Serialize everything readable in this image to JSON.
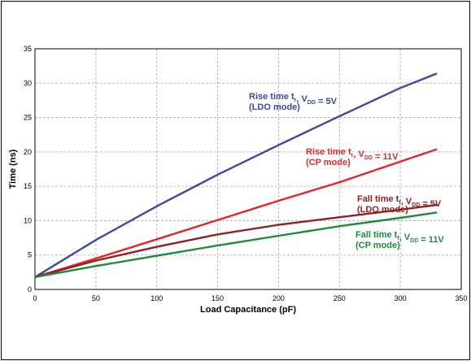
{
  "chart_data": {
    "type": "line",
    "xlabel": "Load Capacitance (pF)",
    "ylabel": "Time (ns)",
    "xlim": [
      0,
      350
    ],
    "ylim": [
      0,
      35
    ],
    "x_ticks": [
      0,
      50,
      100,
      150,
      200,
      250,
      300,
      350
    ],
    "y_ticks": [
      0,
      5,
      10,
      15,
      20,
      25,
      30,
      35
    ],
    "grid": true,
    "legend": "inline annotations",
    "series": [
      {
        "name": "Rise time tr, VDD = 5V (LDO mode)",
        "color": "#3a4a9e",
        "x": [
          0,
          50,
          100,
          150,
          200,
          250,
          300,
          330
        ],
        "y": [
          1.8,
          7.2,
          12.1,
          16.7,
          21.0,
          25.2,
          29.3,
          31.4
        ]
      },
      {
        "name": "Rise time tr, VDD = 11V (CP mode)",
        "color": "#e0252b",
        "x": [
          0,
          50,
          100,
          150,
          200,
          250,
          300,
          330
        ],
        "y": [
          1.8,
          4.5,
          7.3,
          10.1,
          12.9,
          15.6,
          18.6,
          20.4
        ]
      },
      {
        "name": "Fall time tf, VDD = 5V (LDO mode)",
        "color": "#8b2323",
        "x": [
          0,
          50,
          100,
          150,
          200,
          250,
          300,
          330
        ],
        "y": [
          1.8,
          4.2,
          6.2,
          8.0,
          9.4,
          10.5,
          11.6,
          12.3
        ]
      },
      {
        "name": "Fall time tf, VDD = 11V (CP mode)",
        "color": "#1e8a3c",
        "x": [
          0,
          50,
          100,
          150,
          200,
          250,
          300,
          330
        ],
        "y": [
          1.8,
          3.4,
          4.9,
          6.4,
          7.8,
          9.2,
          10.4,
          11.2
        ]
      }
    ],
    "annotations": [
      {
        "color": "#3a4a9e",
        "line1": {
          "pre": "Rise time t",
          "sub1": "r",
          "mid": ", V",
          "sub2": "DD",
          "post": " = 5V"
        },
        "line2": "(LDO mode)"
      },
      {
        "color": "#e0252b",
        "line1": {
          "pre": "Rise time t",
          "sub1": "r",
          "mid": ", V",
          "sub2": "DD",
          "post": " = 11V"
        },
        "line2": "(CP mode)"
      },
      {
        "color": "#8b2323",
        "line1": {
          "pre": "Fall time t",
          "sub1": "f",
          "mid": ", V",
          "sub2": "DD",
          "post": " = 5V"
        },
        "line2": "(LDO mode)"
      },
      {
        "color": "#1e8a3c",
        "line1": {
          "pre": "Fall time t",
          "sub1": "f",
          "mid": ", V",
          "sub2": "DD",
          "post": " = 11V"
        },
        "line2": "(CP mode)"
      }
    ]
  }
}
